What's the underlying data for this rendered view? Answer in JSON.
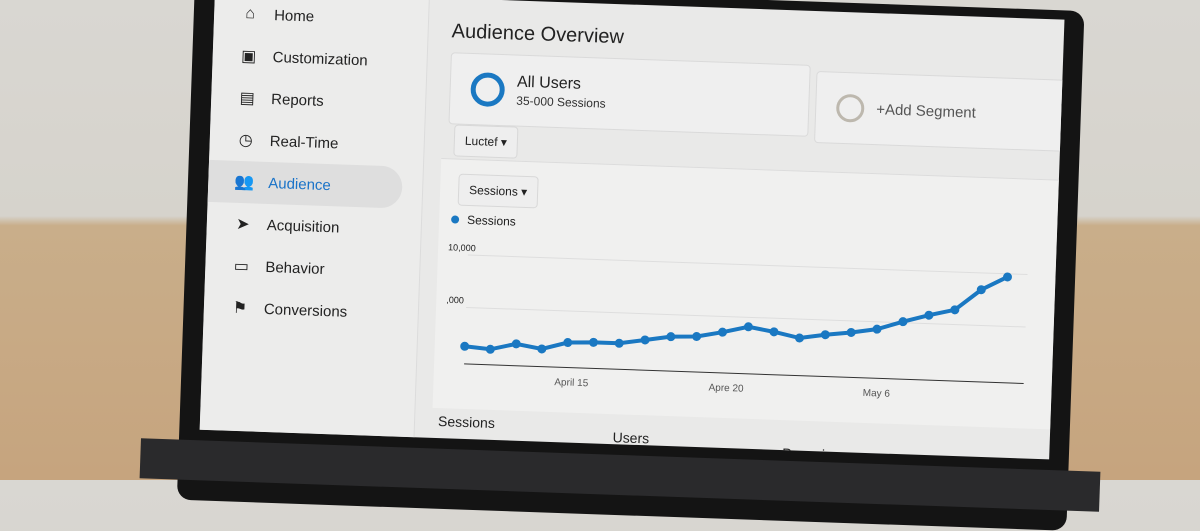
{
  "sidebar": {
    "items": [
      {
        "label": "Home",
        "icon": "home-icon"
      },
      {
        "label": "Customization",
        "icon": "customization-icon"
      },
      {
        "label": "Reports",
        "icon": "reports-icon"
      },
      {
        "label": "Real-Time",
        "icon": "clock-icon"
      },
      {
        "label": "Audience",
        "icon": "people-icon",
        "active": true
      },
      {
        "label": "Acquisition",
        "icon": "acquisition-icon"
      },
      {
        "label": "Behavior",
        "icon": "behavior-icon"
      },
      {
        "label": "Conversions",
        "icon": "flag-icon"
      }
    ]
  },
  "main": {
    "title": "Audience Overview",
    "segment": {
      "name": "All Users",
      "sub": "35-000 Sessions"
    },
    "add_segment": "+Add Segment",
    "tab_dropdown": "Luctef",
    "metric_dropdown": "Sessions",
    "stats": [
      "Sessions",
      "Users",
      "Pageviews"
    ]
  },
  "colors": {
    "accent": "#1a78c2"
  },
  "chart_data": {
    "type": "line",
    "legend": "Sessions",
    "y_ticks": [
      "10,000",
      ",000"
    ],
    "x_ticks": [
      "April 15",
      "Apre 20",
      "May 6"
    ],
    "ylim": [
      0,
      10000
    ],
    "values": [
      1300,
      1100,
      1700,
      1300,
      2000,
      2100,
      2100,
      2500,
      2900,
      3000,
      3500,
      4100,
      3700,
      3200,
      3600,
      3900,
      4300,
      5100,
      5800,
      6400,
      8400,
      9700
    ]
  }
}
